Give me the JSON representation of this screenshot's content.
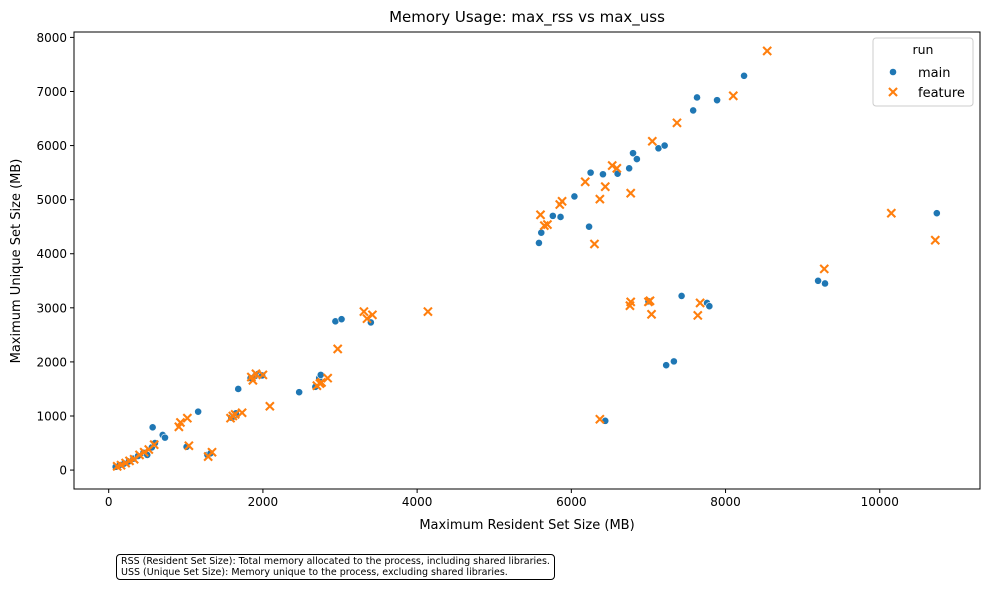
{
  "chart_data": {
    "type": "scatter",
    "title": "Memory Usage: max_rss vs max_uss",
    "xlabel": "Maximum Resident Set Size (MB)",
    "ylabel": "Maximum Unique Set Size (MB)",
    "xlim": [
      -450,
      11300
    ],
    "ylim": [
      -350,
      8100
    ],
    "xticks": [
      0,
      2000,
      4000,
      6000,
      8000,
      10000
    ],
    "yticks": [
      0,
      1000,
      2000,
      3000,
      4000,
      5000,
      6000,
      7000,
      8000
    ],
    "grid": false,
    "legend": {
      "title": "run",
      "placement": "top-right"
    },
    "series": [
      {
        "name": "main",
        "marker": "circle",
        "color": "#1f77b4",
        "points": [
          [
            90,
            60
          ],
          [
            140,
            90
          ],
          [
            200,
            120
          ],
          [
            260,
            160
          ],
          [
            320,
            210
          ],
          [
            380,
            260
          ],
          [
            450,
            320
          ],
          [
            500,
            280
          ],
          [
            560,
            420
          ],
          [
            600,
            500
          ],
          [
            570,
            790
          ],
          [
            700,
            650
          ],
          [
            730,
            600
          ],
          [
            1010,
            430
          ],
          [
            1160,
            1080
          ],
          [
            1280,
            280
          ],
          [
            1320,
            310
          ],
          [
            1590,
            970
          ],
          [
            1620,
            990
          ],
          [
            1650,
            1050
          ],
          [
            1680,
            1500
          ],
          [
            1840,
            1700
          ],
          [
            1900,
            1740
          ],
          [
            1940,
            1780
          ],
          [
            1990,
            1750
          ],
          [
            2470,
            1440
          ],
          [
            2680,
            1540
          ],
          [
            2730,
            1700
          ],
          [
            2750,
            1760
          ],
          [
            2940,
            2750
          ],
          [
            3020,
            2790
          ],
          [
            3400,
            2730
          ],
          [
            5580,
            4200
          ],
          [
            5610,
            4390
          ],
          [
            5760,
            4700
          ],
          [
            5860,
            4680
          ],
          [
            6040,
            5060
          ],
          [
            6230,
            4500
          ],
          [
            6250,
            5500
          ],
          [
            6410,
            5470
          ],
          [
            6440,
            910
          ],
          [
            6600,
            5480
          ],
          [
            6750,
            5580
          ],
          [
            6800,
            5860
          ],
          [
            6850,
            5750
          ],
          [
            7000,
            3120
          ],
          [
            7130,
            5950
          ],
          [
            7210,
            6000
          ],
          [
            7230,
            1940
          ],
          [
            7330,
            2010
          ],
          [
            7430,
            3220
          ],
          [
            7580,
            6650
          ],
          [
            7630,
            6890
          ],
          [
            7760,
            3090
          ],
          [
            7790,
            3030
          ],
          [
            7890,
            6840
          ],
          [
            8240,
            7290
          ],
          [
            9200,
            3500
          ],
          [
            9290,
            3450
          ],
          [
            10740,
            4750
          ]
        ]
      },
      {
        "name": "feature",
        "marker": "x",
        "color": "#ff7f0e",
        "points": [
          [
            110,
            70
          ],
          [
            160,
            90
          ],
          [
            220,
            130
          ],
          [
            270,
            170
          ],
          [
            330,
            200
          ],
          [
            400,
            280
          ],
          [
            460,
            330
          ],
          [
            520,
            380
          ],
          [
            590,
            470
          ],
          [
            910,
            800
          ],
          [
            930,
            880
          ],
          [
            1020,
            960
          ],
          [
            1040,
            450
          ],
          [
            1290,
            250
          ],
          [
            1340,
            330
          ],
          [
            1580,
            960
          ],
          [
            1610,
            1000
          ],
          [
            1640,
            1030
          ],
          [
            1730,
            1060
          ],
          [
            1850,
            1720
          ],
          [
            1870,
            1660
          ],
          [
            1910,
            1780
          ],
          [
            2000,
            1760
          ],
          [
            2090,
            1180
          ],
          [
            2700,
            1560
          ],
          [
            2740,
            1600
          ],
          [
            2760,
            1620
          ],
          [
            2840,
            1700
          ],
          [
            2970,
            2240
          ],
          [
            3310,
            2930
          ],
          [
            3350,
            2800
          ],
          [
            3420,
            2870
          ],
          [
            4140,
            2930
          ],
          [
            5600,
            4720
          ],
          [
            5650,
            4520
          ],
          [
            5690,
            4540
          ],
          [
            5850,
            4910
          ],
          [
            5880,
            4970
          ],
          [
            6180,
            5330
          ],
          [
            6300,
            4180
          ],
          [
            6370,
            940
          ],
          [
            6370,
            5010
          ],
          [
            6440,
            5240
          ],
          [
            6530,
            5630
          ],
          [
            6590,
            5580
          ],
          [
            6760,
            3040
          ],
          [
            6770,
            3110
          ],
          [
            6770,
            5120
          ],
          [
            7000,
            3110
          ],
          [
            7020,
            3130
          ],
          [
            7040,
            2880
          ],
          [
            7050,
            6080
          ],
          [
            7370,
            6420
          ],
          [
            7640,
            2860
          ],
          [
            7670,
            3090
          ],
          [
            8100,
            6920
          ],
          [
            8540,
            7750
          ],
          [
            9280,
            3720
          ],
          [
            10150,
            4750
          ],
          [
            10720,
            4250
          ]
        ]
      }
    ]
  },
  "annotation": {
    "line1": "RSS (Resident Set Size): Total memory allocated to the process, including shared libraries.",
    "line2": "USS (Unique Set Size): Memory unique to the process, excluding shared libraries."
  }
}
